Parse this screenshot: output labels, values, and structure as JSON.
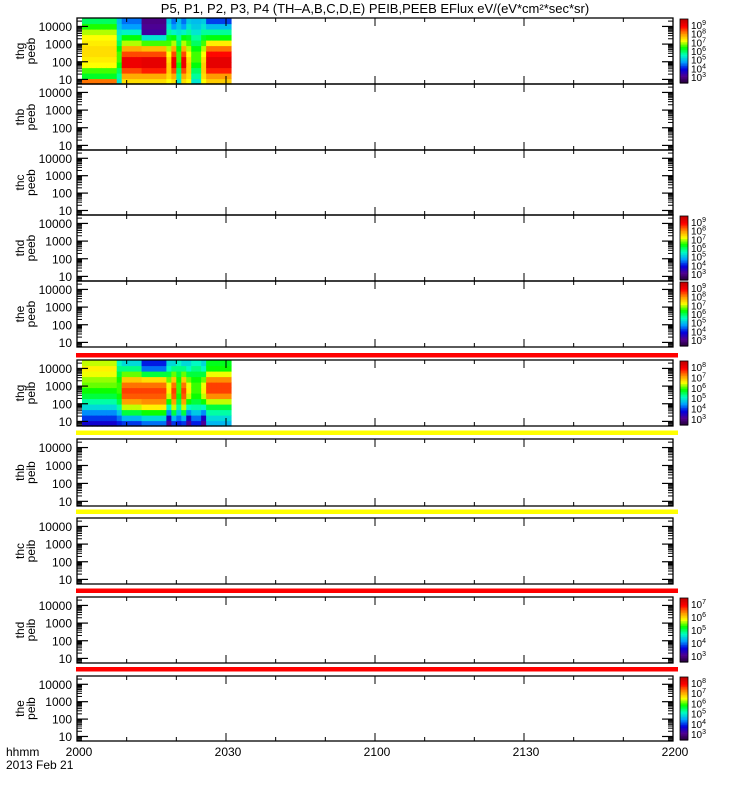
{
  "chart_data": {
    "type": "heatmap",
    "title": "P5, P1, P2, P3, P4 (TH–A,B,C,D,E) PEIB,PEEB EFlux eV/(eV*cm²*sec*sr)",
    "xaxis": {
      "label_line1": "hhmm",
      "label_line2": "2013 Feb 21",
      "ticks": [
        "2000",
        "2030",
        "2100",
        "2130",
        "2200"
      ],
      "range_min": [
        0,
        120
      ],
      "minor_tick_step_min": 10
    },
    "yaxis": {
      "scale": "log",
      "range": [
        5.5,
        30000
      ],
      "ticks": [
        "10",
        "100",
        "1000",
        "10000"
      ]
    },
    "colorbar_base": "10",
    "colormap": [
      "#200030",
      "#500090",
      "#0000e0",
      "#00a0ff",
      "#00ffc0",
      "#00ff00",
      "#ffff00",
      "#ff9000",
      "#ff0000",
      "#c00000"
    ],
    "flag_bar_colors": [
      "#ff0000",
      "#ffff00",
      "#ffff00",
      "#ff0000",
      "#ff0000"
    ],
    "energy_bins_eV": [
      7,
      10,
      20,
      50,
      100,
      200,
      500,
      1000,
      2000,
      5000,
      10000,
      25000
    ],
    "panels": [
      {
        "probe": "thg",
        "inst": "peeb",
        "colorbar": [
          "3",
          "4",
          "5",
          "6",
          "7",
          "8",
          "9"
        ],
        "spec": "peeb_thg"
      },
      {
        "probe": "thb",
        "inst": "peeb",
        "colorbar": null,
        "spec": null
      },
      {
        "probe": "thc",
        "inst": "peeb",
        "colorbar": null,
        "spec": null
      },
      {
        "probe": "thd",
        "inst": "peeb",
        "colorbar": [
          "3",
          "4",
          "5",
          "6",
          "7",
          "8",
          "9"
        ],
        "spec": null
      },
      {
        "probe": "the",
        "inst": "peeb",
        "colorbar": [
          "3",
          "4",
          "5",
          "6",
          "7",
          "8",
          "9"
        ],
        "spec": null
      },
      {
        "probe": "thg",
        "inst": "peib",
        "colorbar": [
          "3",
          "4",
          "5",
          "6",
          "7",
          "8"
        ],
        "spec": "peib_thg"
      },
      {
        "probe": "thb",
        "inst": "peib",
        "colorbar": null,
        "spec": null
      },
      {
        "probe": "thc",
        "inst": "peib",
        "colorbar": null,
        "spec": null
      },
      {
        "probe": "thd",
        "inst": "peib",
        "colorbar": [
          "3",
          "4",
          "5",
          "6",
          "7"
        ],
        "spec": null
      },
      {
        "probe": "the",
        "inst": "peib",
        "colorbar": [
          "3",
          "4",
          "5",
          "6",
          "7",
          "8"
        ],
        "spec": null
      }
    ],
    "spectra": {
      "peeb_thg": {
        "time_range_min": [
          1,
          31
        ],
        "log_eflux_range": [
          3,
          9
        ],
        "columns": "AAAAAAABCCCCDDDDDFCBCFBBFEEEEE",
        "profiles": {
          "A": [
            7.8,
            6.2,
            6.5,
            7.0,
            7.1,
            7.2,
            7.2,
            7.1,
            7.0,
            6.8,
            6.4,
            6.0
          ],
          "B": [
            5.5,
            5.8,
            6.0,
            6.3,
            6.5,
            6.5,
            6.3,
            6.0,
            5.8,
            5.5,
            5.3,
            5.2
          ],
          "C": [
            7.2,
            7.5,
            8.0,
            8.5,
            8.5,
            8.0,
            7.5,
            6.8,
            6.3,
            5.6,
            5.0,
            4.8
          ],
          "D": [
            7.2,
            7.5,
            8.2,
            8.6,
            8.6,
            8.0,
            7.4,
            6.5,
            5.5,
            3.8,
            3.7,
            3.6
          ],
          "E": [
            7.3,
            7.6,
            8.2,
            8.6,
            8.6,
            8.3,
            7.8,
            7.1,
            6.3,
            5.8,
            5.2,
            4.6
          ],
          "F": [
            7.0,
            7.2,
            7.3,
            7.3,
            7.2,
            7.0,
            6.8,
            6.5,
            6.2,
            5.8,
            5.5,
            5.3
          ]
        }
      },
      "peib_thg": {
        "time_range_min": [
          1,
          31
        ],
        "log_eflux_range": [
          3,
          8
        ],
        "columns": "AAAAAAABCCCCDDDDDFCBCFBBFEEEEE",
        "profiles": {
          "A": [
            4.0,
            4.3,
            4.6,
            5.0,
            5.3,
            5.6,
            5.8,
            6.0,
            6.1,
            6.3,
            6.4,
            6.2
          ],
          "B": [
            4.2,
            4.5,
            4.9,
            5.3,
            5.6,
            5.8,
            5.9,
            5.9,
            5.8,
            5.6,
            5.4,
            5.2
          ],
          "C": [
            4.3,
            4.8,
            5.6,
            6.2,
            6.8,
            7.1,
            7.2,
            7.0,
            6.6,
            6.0,
            5.4,
            5.0
          ],
          "D": [
            4.5,
            5.0,
            5.8,
            6.4,
            6.9,
            7.1,
            7.2,
            7.0,
            6.5,
            5.6,
            4.5,
            4.2
          ],
          "E": [
            4.8,
            5.0,
            5.3,
            5.6,
            6.2,
            6.9,
            7.2,
            7.2,
            6.9,
            6.3,
            5.8,
            5.7
          ],
          "F": [
            3.6,
            3.9,
            4.6,
            5.2,
            5.8,
            6.2,
            6.4,
            6.3,
            6.0,
            5.6,
            5.2,
            5.0
          ]
        }
      }
    }
  }
}
